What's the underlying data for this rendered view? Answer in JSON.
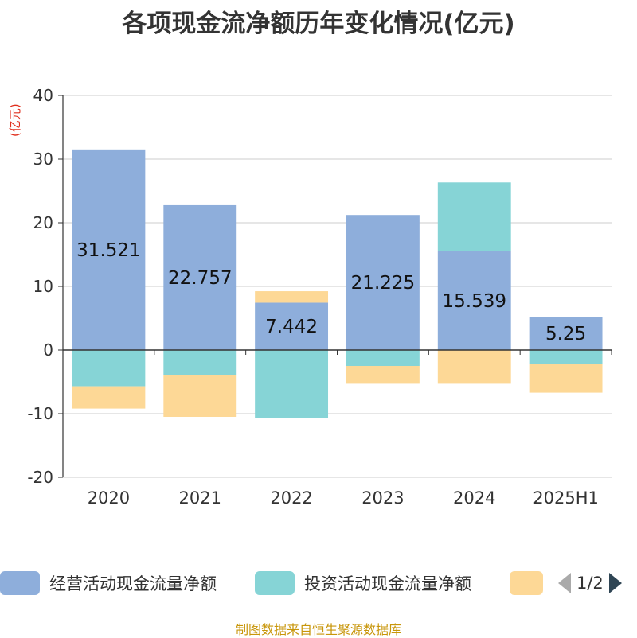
{
  "title": "各项现金流净额历年变化情况(亿元)",
  "unit_label": "(亿元)",
  "source": "制图数据来自恒生聚源数据库",
  "legend": {
    "items": [
      {
        "label": "经营活动现金流量净额",
        "color": "#8eaedb"
      },
      {
        "label": "投资活动现金流量净额",
        "color": "#86d4d6"
      },
      {
        "label": "",
        "color": "#fdd896"
      }
    ],
    "page": "1/2"
  },
  "chart_data": {
    "type": "bar",
    "stacked": true,
    "categories": [
      "2020",
      "2021",
      "2022",
      "2023",
      "2024",
      "2025H1"
    ],
    "ylim": [
      -20,
      40
    ],
    "yticks": [
      40,
      30,
      20,
      10,
      0,
      -10,
      -20
    ],
    "grid": true,
    "legend_position": "bottom",
    "series": [
      {
        "name": "经营活动现金流量净额",
        "color": "#8eaedb",
        "values": [
          31.521,
          22.757,
          7.442,
          21.225,
          15.539,
          5.25
        ],
        "data_labels": [
          "31.521",
          "22.757",
          "7.442",
          "21.225",
          "15.539",
          "5.25"
        ]
      },
      {
        "name": "投资活动现金流量净额",
        "color": "#86d4d6",
        "values": [
          -5.7,
          -3.9,
          -10.7,
          -2.5,
          10.8,
          -2.2
        ]
      },
      {
        "color": "#fdd896",
        "values": [
          -3.5,
          -6.6,
          1.8,
          -2.8,
          -5.3,
          -4.5
        ]
      }
    ]
  }
}
